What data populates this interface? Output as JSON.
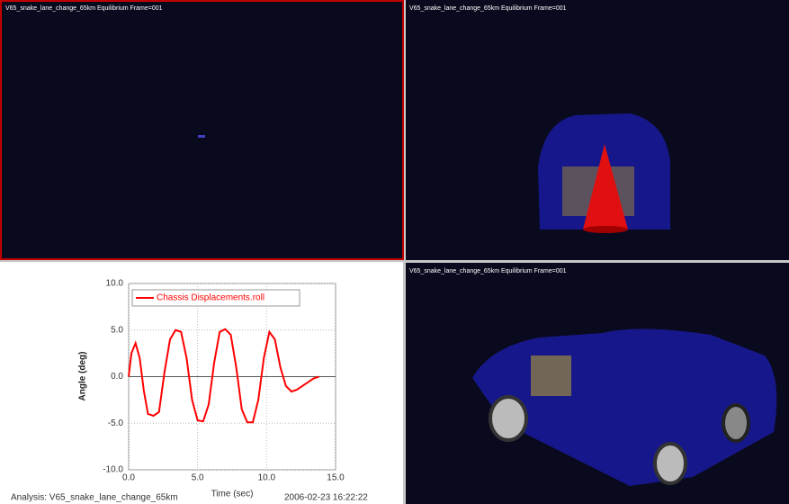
{
  "viewports": [
    {
      "label": "V65_snake_lane_change_65km   Equilibrium  Frame=001"
    },
    {
      "label": "V65_snake_lane_change_65km   Equilibrium  Frame=001"
    },
    {
      "label": "V65_snake_lane_change_65km   Equilibrium  Frame=001"
    }
  ],
  "footer": {
    "analysis": "Analysis:  V65_snake_lane_change_65km",
    "timestamp": "2006-02-23 16:22:22"
  },
  "chart_data": {
    "type": "line",
    "x_label": "Time (sec)",
    "y_label": "Angle (deg)",
    "xlim": [
      0,
      15
    ],
    "ylim": [
      -10,
      10
    ],
    "xticks": [
      {
        "value": 0,
        "label": "0.0"
      },
      {
        "value": 5,
        "label": "5.0"
      },
      {
        "value": 10,
        "label": "10.0"
      },
      {
        "value": 15,
        "label": "15.0"
      }
    ],
    "yticks": [
      {
        "value": -10,
        "label": "-10.0"
      },
      {
        "value": -5,
        "label": "-5.0"
      },
      {
        "value": 0,
        "label": "0.0"
      },
      {
        "value": 5,
        "label": "5.0"
      },
      {
        "value": 10,
        "label": "10.0"
      }
    ],
    "grid": true,
    "legend": "upper-left",
    "x": [
      0,
      0.2,
      0.5,
      0.8,
      1.1,
      1.4,
      1.8,
      2.2,
      2.6,
      3.0,
      3.4,
      3.8,
      4.2,
      4.6,
      5.0,
      5.4,
      5.8,
      6.2,
      6.6,
      7.0,
      7.4,
      7.8,
      8.2,
      8.6,
      9.0,
      9.4,
      9.8,
      10.2,
      10.6,
      11.0,
      11.4,
      11.8,
      12.2,
      12.6,
      13.0,
      13.4,
      13.8
    ],
    "series": [
      {
        "name": "Chassis Displacements.roll",
        "color": "#ff0000",
        "values": [
          0,
          2.5,
          3.6,
          2.0,
          -1.5,
          -4.0,
          -4.2,
          -3.8,
          0.5,
          4.0,
          5.0,
          4.8,
          2.0,
          -2.5,
          -4.7,
          -4.8,
          -3.0,
          1.5,
          4.8,
          5.1,
          4.5,
          1.0,
          -3.5,
          -4.9,
          -4.9,
          -2.5,
          2.0,
          4.8,
          4.0,
          1.0,
          -1.0,
          -1.6,
          -1.4,
          -1.0,
          -0.6,
          -0.2,
          0
        ]
      }
    ]
  }
}
